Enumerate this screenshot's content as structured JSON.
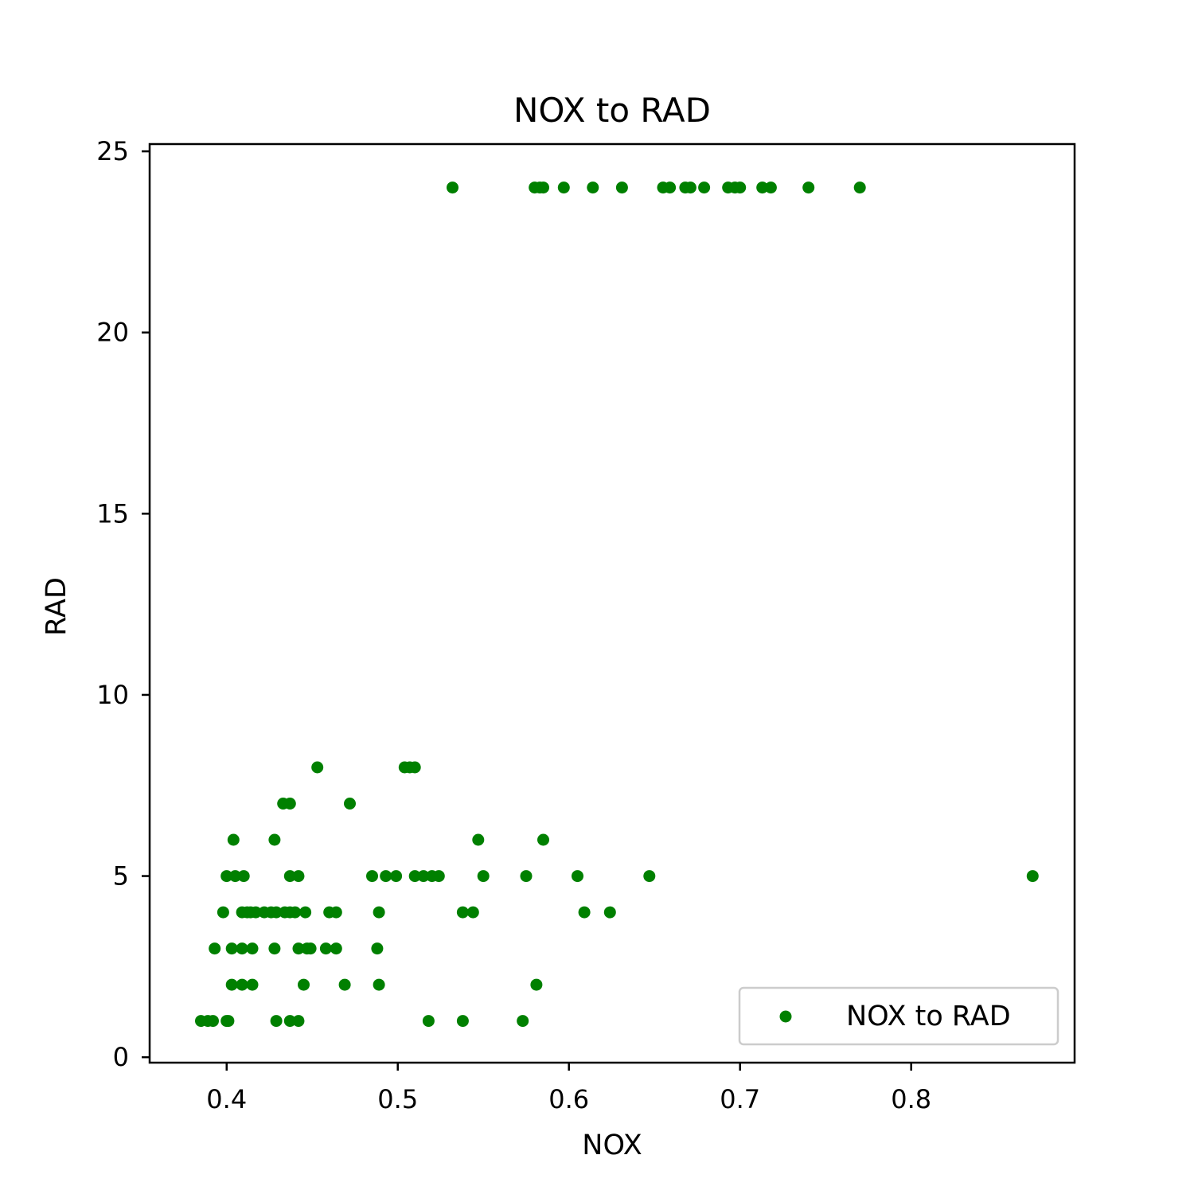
{
  "chart_data": {
    "type": "scatter",
    "title": "NOX to RAD",
    "xlabel": "NOX",
    "ylabel": "RAD",
    "xlim": [
      0.355,
      0.8955
    ],
    "ylim": [
      -0.15,
      25.2
    ],
    "xticks": [
      0.4,
      0.5,
      0.6,
      0.7,
      0.8
    ],
    "xtick_labels": [
      "0.4",
      "0.5",
      "0.6",
      "0.7",
      "0.8"
    ],
    "yticks": [
      0,
      5,
      10,
      15,
      20,
      25
    ],
    "ytick_labels": [
      "0",
      "5",
      "10",
      "15",
      "20",
      "25"
    ],
    "grid": false,
    "legend_position": "lower-right",
    "series": [
      {
        "name": "NOX to RAD",
        "color": "#008000",
        "marker": "circle",
        "points": [
          [
            0.532,
            24
          ],
          [
            0.58,
            24
          ],
          [
            0.583,
            24
          ],
          [
            0.585,
            24
          ],
          [
            0.597,
            24
          ],
          [
            0.614,
            24
          ],
          [
            0.631,
            24
          ],
          [
            0.655,
            24
          ],
          [
            0.659,
            24
          ],
          [
            0.668,
            24
          ],
          [
            0.671,
            24
          ],
          [
            0.679,
            24
          ],
          [
            0.693,
            24
          ],
          [
            0.697,
            24
          ],
          [
            0.7,
            24
          ],
          [
            0.713,
            24
          ],
          [
            0.718,
            24
          ],
          [
            0.74,
            24
          ],
          [
            0.77,
            24
          ],
          [
            0.453,
            8
          ],
          [
            0.504,
            8
          ],
          [
            0.507,
            8
          ],
          [
            0.51,
            8
          ],
          [
            0.433,
            7
          ],
          [
            0.437,
            7
          ],
          [
            0.472,
            7
          ],
          [
            0.404,
            6
          ],
          [
            0.428,
            6
          ],
          [
            0.547,
            6
          ],
          [
            0.585,
            6
          ],
          [
            0.4,
            5
          ],
          [
            0.405,
            5
          ],
          [
            0.41,
            5
          ],
          [
            0.437,
            5
          ],
          [
            0.442,
            5
          ],
          [
            0.485,
            5
          ],
          [
            0.493,
            5
          ],
          [
            0.499,
            5
          ],
          [
            0.51,
            5
          ],
          [
            0.515,
            5
          ],
          [
            0.52,
            5
          ],
          [
            0.524,
            5
          ],
          [
            0.55,
            5
          ],
          [
            0.575,
            5
          ],
          [
            0.605,
            5
          ],
          [
            0.647,
            5
          ],
          [
            0.871,
            5
          ],
          [
            0.398,
            4
          ],
          [
            0.409,
            4
          ],
          [
            0.412,
            4
          ],
          [
            0.414,
            4
          ],
          [
            0.417,
            4
          ],
          [
            0.422,
            4
          ],
          [
            0.426,
            4
          ],
          [
            0.429,
            4
          ],
          [
            0.434,
            4
          ],
          [
            0.437,
            4
          ],
          [
            0.44,
            4
          ],
          [
            0.446,
            4
          ],
          [
            0.46,
            4
          ],
          [
            0.464,
            4
          ],
          [
            0.489,
            4
          ],
          [
            0.538,
            4
          ],
          [
            0.544,
            4
          ],
          [
            0.609,
            4
          ],
          [
            0.624,
            4
          ],
          [
            0.393,
            3
          ],
          [
            0.403,
            3
          ],
          [
            0.409,
            3
          ],
          [
            0.415,
            3
          ],
          [
            0.428,
            3
          ],
          [
            0.442,
            3
          ],
          [
            0.447,
            3
          ],
          [
            0.449,
            3
          ],
          [
            0.458,
            3
          ],
          [
            0.464,
            3
          ],
          [
            0.488,
            3
          ],
          [
            0.403,
            2
          ],
          [
            0.409,
            2
          ],
          [
            0.415,
            2
          ],
          [
            0.445,
            2
          ],
          [
            0.469,
            2
          ],
          [
            0.489,
            2
          ],
          [
            0.581,
            2
          ],
          [
            0.385,
            1
          ],
          [
            0.389,
            1
          ],
          [
            0.392,
            1
          ],
          [
            0.4,
            1
          ],
          [
            0.401,
            1
          ],
          [
            0.429,
            1
          ],
          [
            0.437,
            1
          ],
          [
            0.442,
            1
          ],
          [
            0.518,
            1
          ],
          [
            0.538,
            1
          ],
          [
            0.573,
            1
          ]
        ]
      }
    ]
  }
}
